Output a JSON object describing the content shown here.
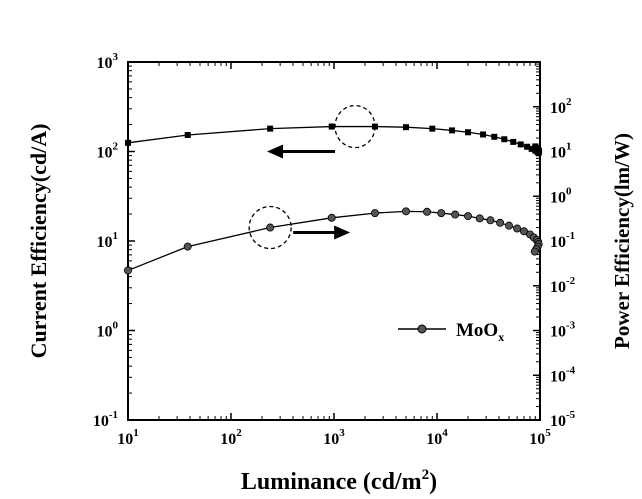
{
  "chart_data": {
    "type": "line",
    "xlabel": "Luminance (cd/m",
    "xlabel_sup": "2",
    "xlabel_close": ")",
    "ylabel_left": "Current Efficiency(cd/A)",
    "ylabel_right": "Power Efficiency(lm/W)",
    "x_scale": "log",
    "y_left_scale": "log",
    "y_right_scale": "log",
    "xlim": [
      10,
      100000
    ],
    "ylim_left": [
      0.1,
      1000
    ],
    "ylim_right": [
      1e-05,
      1000
    ],
    "x_ticks": [
      {
        "base": "10",
        "exp": "1"
      },
      {
        "base": "10",
        "exp": "2"
      },
      {
        "base": "10",
        "exp": "3"
      },
      {
        "base": "10",
        "exp": "4"
      },
      {
        "base": "10",
        "exp": "5"
      }
    ],
    "y_left_ticks": [
      {
        "base": "10",
        "exp": "-1"
      },
      {
        "base": "10",
        "exp": "0"
      },
      {
        "base": "10",
        "exp": "1"
      },
      {
        "base": "10",
        "exp": "2"
      },
      {
        "base": "10",
        "exp": "3"
      }
    ],
    "y_right_ticks": [
      {
        "base": "10",
        "exp": "-5"
      },
      {
        "base": "10",
        "exp": "-4"
      },
      {
        "base": "10",
        "exp": "-3"
      },
      {
        "base": "10",
        "exp": "-2"
      },
      {
        "base": "10",
        "exp": "-1"
      },
      {
        "base": "10",
        "exp": "0"
      },
      {
        "base": "10",
        "exp": "1"
      },
      {
        "base": "10",
        "exp": "2"
      }
    ],
    "grid": false,
    "legend": {
      "position": "bottom-right",
      "label": "MoO",
      "label_sub": "x"
    },
    "series": [
      {
        "axis": "left",
        "marker": "square",
        "x": [
          10,
          38,
          240,
          950,
          2500,
          5000,
          9000,
          14000,
          20000,
          28000,
          36000,
          45000,
          55000,
          65000,
          75000,
          83000,
          90000,
          95000,
          97000,
          98000,
          97000,
          95000,
          92000,
          90000
        ],
        "y": [
          125,
          153,
          180,
          190,
          190,
          187,
          180,
          172,
          164,
          155,
          146,
          137,
          128,
          120,
          113,
          107,
          102,
          98,
          97,
          100,
          103,
          107,
          110,
          114
        ]
      },
      {
        "axis": "right",
        "marker": "circle",
        "x": [
          10,
          38,
          240,
          950,
          2500,
          5000,
          8000,
          11000,
          15000,
          20000,
          26000,
          33000,
          41000,
          50000,
          60000,
          70000,
          80000,
          87000,
          93000,
          96000,
          97000,
          95000,
          92000,
          89000
        ],
        "y": [
          0.022,
          0.075,
          0.2,
          0.33,
          0.42,
          0.46,
          0.45,
          0.42,
          0.39,
          0.36,
          0.32,
          0.29,
          0.255,
          0.22,
          0.19,
          0.165,
          0.14,
          0.12,
          0.105,
          0.095,
          0.085,
          0.075,
          0.066,
          0.058
        ]
      }
    ],
    "annotations": [
      {
        "type": "dashed-circle",
        "target_series": 0
      },
      {
        "type": "dashed-circle",
        "target_series": 1
      },
      {
        "type": "arrow",
        "direction": "left",
        "target_axis": "left"
      },
      {
        "type": "arrow",
        "direction": "right",
        "target_axis": "right"
      }
    ]
  }
}
